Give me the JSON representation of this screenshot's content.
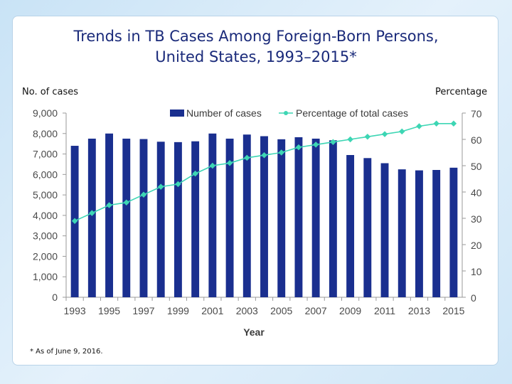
{
  "title_line1": "Trends in TB Cases Among Foreign-Born Persons,",
  "title_line2": "United States, 1993–2015*",
  "left_axis_caption": "No. of cases",
  "right_axis_caption": "Percentage",
  "footnote": "* As of June 9, 2016.",
  "colors": {
    "bar": "#1a2f8f",
    "line": "#3dd6b4",
    "title": "#1a2a7a"
  },
  "chart_data": {
    "type": "bar",
    "title": "Trends in TB Cases Among Foreign-Born Persons, United States, 1993–2015*",
    "xlabel": "Year",
    "ylabel": "No. of cases",
    "y2label": "Percentage",
    "categories": [
      "1993",
      "1994",
      "1995",
      "1996",
      "1997",
      "1998",
      "1999",
      "2000",
      "2001",
      "2002",
      "2003",
      "2004",
      "2005",
      "2006",
      "2007",
      "2008",
      "2009",
      "2010",
      "2011",
      "2012",
      "2013",
      "2014",
      "2015"
    ],
    "x_tick_labels": [
      "1993",
      "1995",
      "1997",
      "1999",
      "2001",
      "2003",
      "2005",
      "2007",
      "2009",
      "2011",
      "2013",
      "2015"
    ],
    "ylim": [
      0,
      9000
    ],
    "y_ticks": [
      "0",
      "1,000",
      "2,000",
      "3,000",
      "4,000",
      "5,000",
      "6,000",
      "7,000",
      "8,000",
      "9,000"
    ],
    "y2lim": [
      0,
      70
    ],
    "y2_ticks": [
      "0",
      "10",
      "20",
      "30",
      "40",
      "50",
      "60",
      "70"
    ],
    "legend_position": "top",
    "series": [
      {
        "name": "Number of cases",
        "type": "bar",
        "axis": "left",
        "values": [
          7400,
          7750,
          8000,
          7750,
          7730,
          7600,
          7580,
          7620,
          8000,
          7750,
          7950,
          7870,
          7720,
          7820,
          7750,
          7670,
          6950,
          6800,
          6550,
          6250,
          6200,
          6220,
          6330
        ]
      },
      {
        "name": "Percentage of total cases",
        "type": "line",
        "axis": "right",
        "values": [
          29,
          32,
          35,
          36,
          39,
          42,
          43,
          47,
          50,
          51,
          53,
          54,
          55,
          57,
          58,
          59,
          60,
          61,
          62,
          63,
          65,
          66,
          66
        ]
      }
    ]
  }
}
